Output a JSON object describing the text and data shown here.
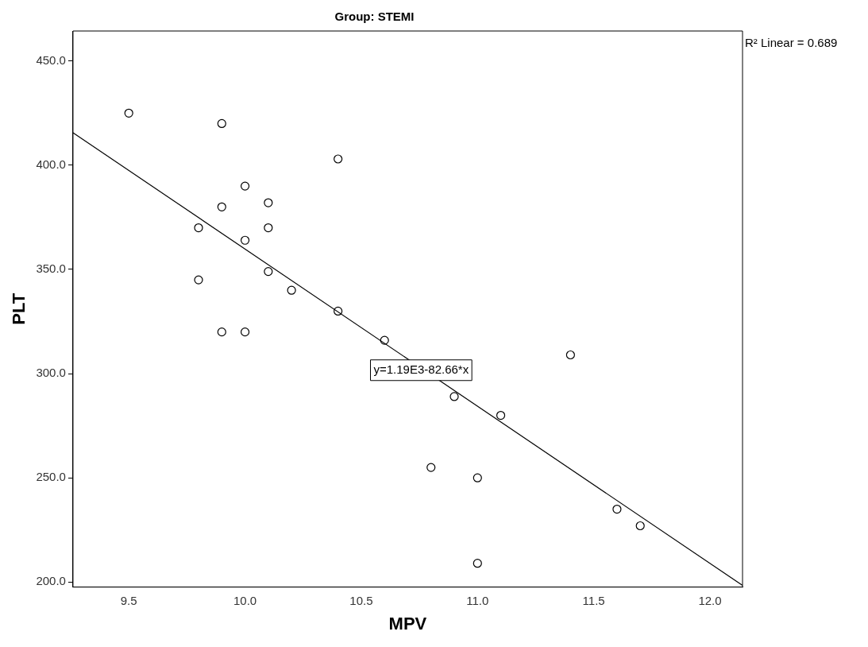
{
  "chart_data": {
    "type": "scatter",
    "title": "Group: STEMI",
    "xlabel": "MPV",
    "ylabel": "PLT",
    "xlim": [
      9.26,
      12.14
    ],
    "ylim": [
      197.6,
      464.4
    ],
    "xticks": [
      {
        "value": 9.5,
        "label": "9.5"
      },
      {
        "value": 10,
        "label": "10.0"
      },
      {
        "value": 10.5,
        "label": "10.5"
      },
      {
        "value": 11,
        "label": "11.0"
      },
      {
        "value": 11.5,
        "label": "11.5"
      },
      {
        "value": 12,
        "label": "12.0"
      }
    ],
    "yticks": [
      {
        "value": 200,
        "label": "200.0"
      },
      {
        "value": 250,
        "label": "250.0"
      },
      {
        "value": 300,
        "label": "300.0"
      },
      {
        "value": 350,
        "label": "350.0"
      },
      {
        "value": 400,
        "label": "400.0"
      },
      {
        "value": 450,
        "label": "450.0"
      }
    ],
    "grid": false,
    "legend": false,
    "marker": "circle",
    "series": [
      {
        "color": "#000000",
        "x": [
          9.5,
          9.9,
          10.4,
          10.0,
          9.9,
          10.1,
          9.8,
          10.1,
          10.0,
          9.8,
          10.1,
          10.2,
          10.4,
          9.9,
          10.0,
          10.6,
          11.4,
          10.9,
          11.1,
          10.8,
          11.0,
          11.6,
          11.7,
          11.0
        ],
        "values": [
          425,
          420,
          403,
          390,
          380,
          382,
          370,
          370,
          364,
          345,
          349,
          340,
          330,
          320,
          320,
          316,
          309,
          289,
          280,
          255,
          250,
          235,
          227,
          209
        ]
      },
      {
        "type": "line",
        "color": "#000000",
        "marker": "none",
        "line_style": "solid",
        "x": [
          9.26,
          12.14
        ],
        "values": [
          415.6,
          198.4
        ]
      }
    ],
    "annotations": [
      "R² Linear = 0.689",
      "y=1.19E3-82.66*x"
    ]
  }
}
